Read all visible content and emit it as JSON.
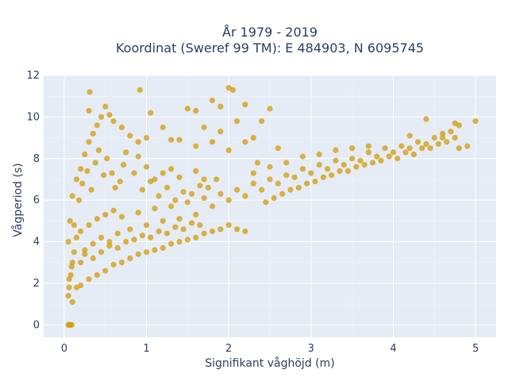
{
  "chart_data": {
    "type": "scatter",
    "title": [
      "År 1979 - 2019",
      "Koordinat (Sweref 99 TM): E 484903, N 6095745"
    ],
    "xlabel": "Signifikant våghöjd (m)",
    "ylabel": "Vågperiod (s)",
    "xlim": [
      -0.25,
      5.25
    ],
    "ylim": [
      -0.6,
      12.0
    ],
    "xticks": [
      0,
      1,
      2,
      3,
      4,
      5
    ],
    "yticks": [
      0,
      2,
      4,
      6,
      8,
      10,
      12
    ],
    "grid": true,
    "marker_color": "#D4A017",
    "background": "#E5ECF6",
    "series": [
      {
        "points": [
          [
            0.05,
            0.0
          ],
          [
            0.07,
            0.0
          ],
          [
            0.09,
            0.0
          ],
          [
            0.06,
            0.0
          ],
          [
            0.08,
            0.0
          ],
          [
            0.05,
            1.4
          ],
          [
            0.06,
            1.8
          ],
          [
            0.08,
            2.4
          ],
          [
            0.1,
            3.0
          ],
          [
            0.12,
            3.5
          ],
          [
            0.06,
            2.2
          ],
          [
            0.09,
            2.8
          ],
          [
            0.05,
            4.0
          ],
          [
            0.07,
            5.0
          ],
          [
            0.1,
            6.2
          ],
          [
            0.15,
            7.0
          ],
          [
            0.2,
            7.5
          ],
          [
            0.25,
            8.2
          ],
          [
            0.3,
            8.8
          ],
          [
            0.35,
            9.2
          ],
          [
            0.4,
            9.6
          ],
          [
            0.45,
            10.0
          ],
          [
            0.3,
            10.3
          ],
          [
            0.5,
            10.5
          ],
          [
            0.31,
            11.2
          ],
          [
            0.55,
            10.1
          ],
          [
            0.6,
            9.8
          ],
          [
            0.7,
            9.5
          ],
          [
            0.8,
            9.1
          ],
          [
            0.9,
            8.8
          ],
          [
            1.0,
            9.0
          ],
          [
            1.05,
            10.2
          ],
          [
            0.92,
            11.3
          ],
          [
            1.2,
            9.5
          ],
          [
            1.3,
            8.9
          ],
          [
            0.75,
            8.3
          ],
          [
            0.15,
            4.2
          ],
          [
            0.2,
            4.5
          ],
          [
            0.25,
            3.6
          ],
          [
            0.3,
            4.8
          ],
          [
            0.35,
            3.9
          ],
          [
            0.4,
            5.1
          ],
          [
            0.45,
            4.2
          ],
          [
            0.5,
            5.3
          ],
          [
            0.55,
            4.0
          ],
          [
            0.6,
            5.5
          ],
          [
            0.65,
            4.4
          ],
          [
            0.7,
            5.2
          ],
          [
            0.8,
            4.6
          ],
          [
            0.9,
            5.4
          ],
          [
            1.0,
            4.8
          ],
          [
            1.1,
            5.6
          ],
          [
            1.2,
            5.0
          ],
          [
            1.3,
            5.7
          ],
          [
            1.4,
            5.1
          ],
          [
            1.5,
            5.9
          ],
          [
            1.6,
            5.3
          ],
          [
            1.7,
            6.1
          ],
          [
            1.8,
            5.7
          ],
          [
            1.9,
            6.3
          ],
          [
            2.0,
            6.0
          ],
          [
            2.1,
            6.5
          ],
          [
            2.2,
            6.2
          ],
          [
            2.3,
            6.8
          ],
          [
            2.4,
            6.5
          ],
          [
            2.5,
            7.0
          ],
          [
            2.6,
            6.8
          ],
          [
            2.7,
            7.2
          ],
          [
            2.8,
            7.1
          ],
          [
            2.9,
            7.5
          ],
          [
            3.0,
            7.3
          ],
          [
            3.1,
            7.7
          ],
          [
            3.2,
            7.5
          ],
          [
            3.3,
            7.9
          ],
          [
            3.4,
            7.7
          ],
          [
            3.5,
            8.0
          ],
          [
            3.6,
            7.9
          ],
          [
            3.7,
            8.3
          ],
          [
            3.8,
            8.1
          ],
          [
            3.9,
            8.5
          ],
          [
            4.0,
            8.3
          ],
          [
            4.1,
            8.6
          ],
          [
            4.2,
            8.5
          ],
          [
            4.3,
            8.8
          ],
          [
            4.4,
            8.7
          ],
          [
            4.5,
            9.0
          ],
          [
            4.6,
            9.0
          ],
          [
            4.7,
            9.3
          ],
          [
            4.8,
            9.6
          ],
          [
            4.75,
            9.7
          ],
          [
            5.0,
            9.8
          ],
          [
            4.9,
            8.6
          ],
          [
            4.4,
            9.9
          ],
          [
            4.6,
            9.2
          ],
          [
            4.2,
            9.1
          ],
          [
            4.8,
            8.5
          ],
          [
            1.5,
            10.4
          ],
          [
            1.6,
            10.3
          ],
          [
            1.8,
            10.8
          ],
          [
            1.9,
            10.5
          ],
          [
            2.0,
            11.4
          ],
          [
            2.05,
            11.3
          ],
          [
            2.2,
            10.6
          ],
          [
            2.1,
            9.8
          ],
          [
            2.3,
            9.0
          ],
          [
            2.4,
            9.8
          ],
          [
            2.5,
            10.4
          ],
          [
            1.7,
            9.5
          ],
          [
            1.8,
            8.8
          ],
          [
            2.0,
            8.4
          ],
          [
            1.9,
            9.3
          ],
          [
            2.2,
            8.8
          ],
          [
            1.4,
            8.9
          ],
          [
            1.6,
            8.6
          ],
          [
            2.35,
            7.8
          ],
          [
            2.6,
            8.5
          ],
          [
            0.5,
            2.6
          ],
          [
            0.6,
            2.9
          ],
          [
            0.7,
            3.0
          ],
          [
            0.8,
            3.2
          ],
          [
            0.9,
            3.4
          ],
          [
            1.0,
            3.5
          ],
          [
            1.1,
            3.6
          ],
          [
            1.2,
            3.7
          ],
          [
            1.3,
            3.9
          ],
          [
            1.4,
            4.0
          ],
          [
            1.5,
            4.1
          ],
          [
            1.6,
            4.2
          ],
          [
            1.7,
            4.4
          ],
          [
            1.8,
            4.5
          ],
          [
            1.9,
            4.6
          ],
          [
            2.0,
            4.8
          ],
          [
            2.1,
            4.6
          ],
          [
            2.2,
            4.5
          ],
          [
            0.1,
            1.1
          ],
          [
            0.15,
            1.8
          ],
          [
            0.2,
            1.9
          ],
          [
            0.3,
            2.2
          ],
          [
            0.4,
            2.4
          ],
          [
            0.12,
            4.8
          ],
          [
            0.18,
            6.0
          ],
          [
            0.22,
            6.8
          ],
          [
            0.28,
            7.4
          ],
          [
            0.33,
            6.5
          ],
          [
            0.38,
            7.8
          ],
          [
            0.42,
            8.4
          ],
          [
            0.48,
            7.2
          ],
          [
            0.52,
            8.0
          ],
          [
            0.58,
            7.3
          ],
          [
            0.62,
            6.6
          ],
          [
            0.68,
            6.9
          ],
          [
            0.72,
            7.7
          ],
          [
            0.85,
            7.3
          ],
          [
            0.95,
            6.5
          ],
          [
            1.05,
            6.9
          ],
          [
            1.15,
            6.2
          ],
          [
            1.25,
            6.6
          ],
          [
            1.35,
            6.0
          ],
          [
            1.45,
            6.4
          ],
          [
            1.55,
            6.3
          ],
          [
            1.65,
            6.7
          ],
          [
            1.75,
            6.6
          ],
          [
            1.85,
            7.0
          ],
          [
            0.2,
            3.0
          ],
          [
            0.25,
            3.4
          ],
          [
            0.35,
            3.2
          ],
          [
            0.45,
            3.5
          ],
          [
            0.55,
            3.8
          ],
          [
            0.65,
            3.7
          ],
          [
            0.75,
            4.0
          ],
          [
            0.85,
            4.1
          ],
          [
            0.95,
            4.3
          ],
          [
            1.05,
            4.2
          ],
          [
            1.15,
            4.5
          ],
          [
            1.25,
            4.4
          ],
          [
            1.35,
            4.7
          ],
          [
            1.45,
            4.6
          ],
          [
            1.55,
            4.9
          ],
          [
            1.65,
            4.8
          ],
          [
            2.45,
            5.9
          ],
          [
            2.55,
            6.1
          ],
          [
            2.65,
            6.3
          ],
          [
            2.75,
            6.5
          ],
          [
            2.85,
            6.6
          ],
          [
            2.95,
            6.8
          ],
          [
            3.05,
            6.9
          ],
          [
            3.15,
            7.1
          ],
          [
            3.25,
            7.2
          ],
          [
            3.35,
            7.4
          ],
          [
            3.45,
            7.4
          ],
          [
            3.55,
            7.6
          ],
          [
            3.65,
            7.7
          ],
          [
            3.75,
            7.8
          ],
          [
            3.85,
            7.9
          ],
          [
            3.95,
            8.1
          ],
          [
            4.05,
            8.0
          ],
          [
            4.15,
            8.3
          ],
          [
            4.25,
            8.2
          ],
          [
            4.35,
            8.5
          ],
          [
            4.45,
            8.5
          ],
          [
            4.55,
            8.7
          ],
          [
            4.65,
            8.8
          ],
          [
            4.75,
            9.0
          ],
          [
            2.3,
            7.3
          ],
          [
            2.5,
            7.6
          ],
          [
            2.7,
            7.8
          ],
          [
            2.9,
            8.1
          ],
          [
            3.1,
            8.2
          ],
          [
            3.3,
            8.4
          ],
          [
            3.5,
            8.5
          ],
          [
            3.7,
            8.6
          ],
          [
            1.1,
            7.0
          ],
          [
            1.2,
            7.3
          ],
          [
            1.0,
            7.6
          ],
          [
            0.9,
            8.1
          ],
          [
            1.3,
            7.5
          ],
          [
            1.4,
            7.1
          ],
          [
            1.6,
            7.4
          ],
          [
            1.7,
            7.0
          ]
        ]
      }
    ]
  }
}
